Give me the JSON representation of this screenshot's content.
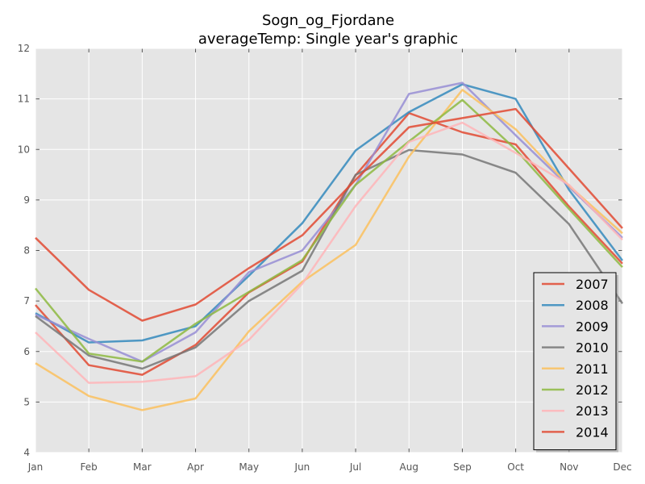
{
  "chart_data": {
    "type": "line",
    "title": "Sogn_og_Fjordane",
    "subtitle": "averageTemp: Single year's graphic",
    "xlabel": "",
    "ylabel": "",
    "categories": [
      "Jan",
      "Feb",
      "Mar",
      "Apr",
      "May",
      "Jun",
      "Jul",
      "Aug",
      "Sep",
      "Oct",
      "Nov",
      "Dec"
    ],
    "ylim": [
      4,
      12
    ],
    "yticks": [
      4,
      5,
      6,
      7,
      8,
      9,
      10,
      11,
      12
    ],
    "grid": true,
    "legend_position": "bottom-right",
    "background": "#e5e5e5",
    "series": [
      {
        "name": "2007",
        "color": "#e24a33",
        "values": [
          6.92,
          5.73,
          5.54,
          6.13,
          7.17,
          7.78,
          9.49,
          10.72,
          10.34,
          10.1,
          8.87,
          7.74
        ]
      },
      {
        "name": "2008",
        "color": "#348abd",
        "values": [
          6.76,
          6.18,
          6.22,
          6.5,
          7.5,
          8.54,
          9.98,
          10.74,
          11.29,
          11.0,
          9.2,
          7.8
        ]
      },
      {
        "name": "2009",
        "color": "#988ed5",
        "values": [
          6.73,
          6.25,
          5.8,
          6.38,
          7.57,
          8.0,
          9.3,
          11.1,
          11.32,
          10.28,
          9.26,
          8.25
        ]
      },
      {
        "name": "2010",
        "color": "#777777",
        "values": [
          6.7,
          5.92,
          5.66,
          6.08,
          7.0,
          7.6,
          9.5,
          9.99,
          9.9,
          9.54,
          8.52,
          6.95
        ]
      },
      {
        "name": "2011",
        "color": "#fbc15e",
        "values": [
          5.77,
          5.12,
          4.84,
          5.07,
          6.4,
          7.38,
          8.11,
          9.86,
          11.18,
          10.4,
          9.28,
          8.34
        ]
      },
      {
        "name": "2012",
        "color": "#8eba42",
        "values": [
          7.25,
          5.96,
          5.8,
          6.55,
          7.18,
          7.81,
          9.3,
          10.16,
          10.98,
          10.0,
          8.82,
          7.67
        ]
      },
      {
        "name": "2013",
        "color": "#ffb5b8",
        "values": [
          6.38,
          5.38,
          5.4,
          5.51,
          6.23,
          7.34,
          8.88,
          10.15,
          10.53,
          9.93,
          9.3,
          8.21
        ]
      },
      {
        "name": "2014",
        "color": "#e24a33",
        "values": [
          8.25,
          7.22,
          6.61,
          6.93,
          7.65,
          8.3,
          9.4,
          10.44,
          10.62,
          10.8,
          9.62,
          8.44
        ]
      }
    ]
  }
}
